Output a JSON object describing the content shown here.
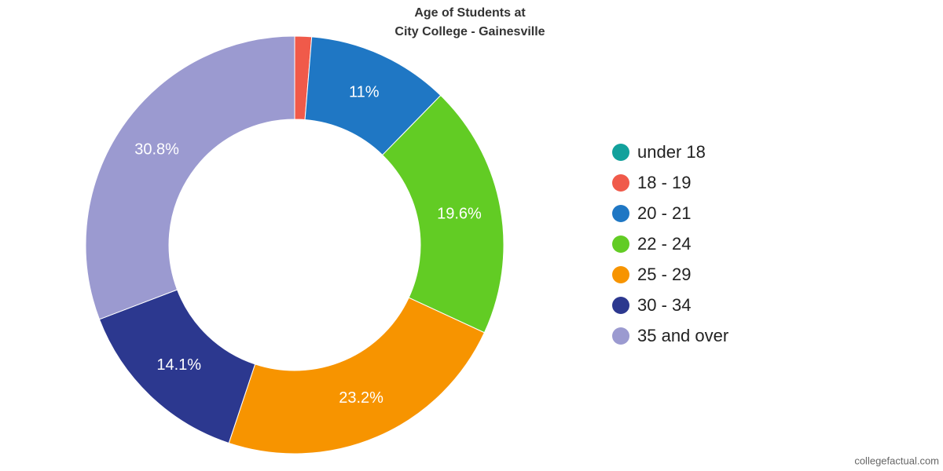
{
  "chart_data": {
    "type": "pie",
    "title_lines": [
      "Age of Students at",
      "City College - Gainesville"
    ],
    "categories": [
      "under 18",
      "18 - 19",
      "20 - 21",
      "22 - 24",
      "25 - 29",
      "30 - 34",
      "35 and over"
    ],
    "values": [
      0,
      1.3,
      11,
      19.6,
      23.2,
      14.1,
      30.8
    ],
    "value_labels": [
      null,
      null,
      "11%",
      "19.6%",
      "23.2%",
      "14.1%",
      "30.8%"
    ],
    "colors": [
      "#12a19c",
      "#f05a4a",
      "#1f77c4",
      "#62cc24",
      "#f79400",
      "#2c388f",
      "#9b9ad0"
    ],
    "legend": "right",
    "source": "collegefactual.com"
  }
}
